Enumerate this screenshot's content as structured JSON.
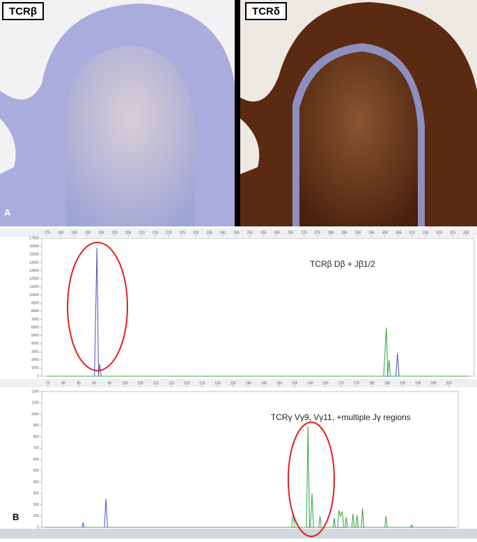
{
  "panels": {
    "label_a": "A",
    "label_b": "B",
    "image_left_label": "TCRβ",
    "image_right_label": "TCRδ"
  },
  "chart_data": [
    {
      "type": "line",
      "annotation": "TCRβ   Dβ + Jβ1/2",
      "xlim": [
        173,
        333
      ],
      "ylim": [
        0,
        17000
      ],
      "xticks": [
        175,
        180,
        185,
        190,
        195,
        200,
        205,
        210,
        215,
        220,
        225,
        230,
        235,
        240,
        245,
        250,
        255,
        260,
        265,
        270,
        275,
        280,
        285,
        290,
        295,
        300,
        305,
        310,
        315,
        320,
        325,
        330
      ],
      "yticks": [
        0,
        1000,
        2000,
        3000,
        4000,
        5000,
        6000,
        7000,
        8000,
        9000,
        10000,
        11000,
        12000,
        13000,
        14000,
        15000,
        16000,
        17000
      ],
      "series": [
        {
          "color": "#5a5ad6",
          "x": [
            175,
            192.5,
            193.4,
            194,
            194.4,
            195,
            300,
            304,
            304.6,
            305.2,
            331
          ],
          "values": [
            0,
            0,
            15800,
            0,
            1500,
            0,
            0,
            0,
            2800,
            0,
            0
          ]
        },
        {
          "color": "#3fa84a",
          "x": [
            175,
            299.5,
            300.5,
            301,
            301.5,
            302,
            331
          ],
          "values": [
            0,
            0,
            6000,
            0,
            2000,
            0,
            0
          ]
        }
      ]
    },
    {
      "type": "line",
      "annotation": "TCRγ   Vγ9, Vγ11, +multiple Jγ regions",
      "xlim": [
        73,
        208
      ],
      "ylim": [
        0,
        1200
      ],
      "xticks": [
        75,
        80,
        85,
        90,
        95,
        100,
        105,
        110,
        115,
        120,
        125,
        130,
        135,
        140,
        145,
        150,
        155,
        160,
        165,
        170,
        175,
        180,
        185,
        190,
        195,
        200,
        205
      ],
      "yticks": [
        0,
        100,
        200,
        300,
        400,
        500,
        600,
        700,
        800,
        900,
        1000,
        1100,
        1200
      ],
      "series": [
        {
          "color": "#5a5ad6",
          "x": [
            74,
            86,
            86.4,
            86.8,
            93.3,
            93.8,
            94.3,
            192.5,
            192.9,
            193.3,
            207
          ],
          "values": [
            0,
            0,
            40,
            0,
            0,
            250,
            0,
            0,
            20,
            0,
            0
          ]
        },
        {
          "color": "#3fa84a",
          "x": [
            74,
            154,
            154.5,
            155,
            158.8,
            159.3,
            159.8,
            160.1,
            160.6,
            161.1,
            162.8,
            163.2,
            163.6,
            167.4,
            167.8,
            168.2,
            168.9,
            169.3,
            169.8,
            170.4,
            170.9,
            171.3,
            171.7,
            172.1,
            173.5,
            173.9,
            174.3,
            174.8,
            175.2,
            175.6,
            176.6,
            177,
            177.4,
            184.2,
            184.6,
            185,
            207
          ],
          "values": [
            0,
            0,
            130,
            0,
            0,
            890,
            0,
            0,
            300,
            0,
            0,
            100,
            0,
            0,
            80,
            0,
            0,
            150,
            100,
            140,
            0,
            0,
            90,
            0,
            0,
            120,
            0,
            0,
            110,
            0,
            0,
            170,
            0,
            0,
            100,
            0,
            0
          ]
        }
      ]
    }
  ]
}
